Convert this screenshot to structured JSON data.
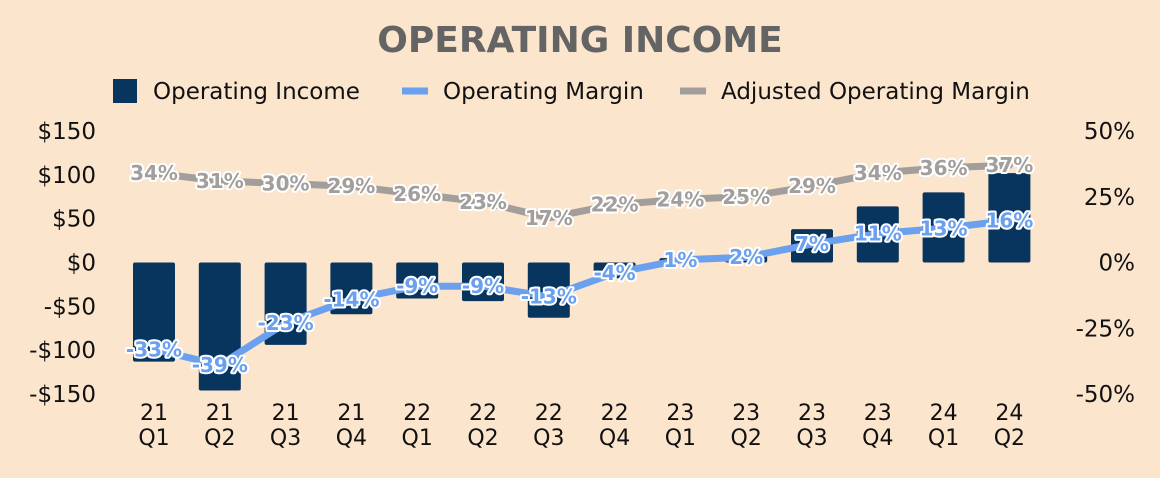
{
  "chart_data": {
    "type": "bar+line",
    "title": "OPERATING INCOME",
    "categories": [
      [
        "21",
        "Q1"
      ],
      [
        "21",
        "Q2"
      ],
      [
        "21",
        "Q3"
      ],
      [
        "21",
        "Q4"
      ],
      [
        "22",
        "Q1"
      ],
      [
        "22",
        "Q2"
      ],
      [
        "22",
        "Q3"
      ],
      [
        "22",
        "Q4"
      ],
      [
        "23",
        "Q1"
      ],
      [
        "23",
        "Q2"
      ],
      [
        "23",
        "Q3"
      ],
      [
        "23",
        "Q4"
      ],
      [
        "24",
        "Q1"
      ],
      [
        "24",
        "Q2"
      ]
    ],
    "series": [
      {
        "name": "Operating Income",
        "type": "bar",
        "axis": "left",
        "color": "#07355e",
        "values": [
          -113,
          -146,
          -94,
          -59,
          -41,
          -44,
          -63,
          -18,
          5,
          8,
          38,
          64,
          80,
          102
        ]
      },
      {
        "name": "Operating Margin",
        "type": "line",
        "axis": "right",
        "color": "#6aa0ee",
        "values": [
          -33,
          -39,
          -23,
          -14,
          -9,
          -9,
          -13,
          -4,
          1,
          2,
          7,
          11,
          13,
          16
        ],
        "labels": [
          "-33%",
          "-39%",
          "-23%",
          "-14%",
          "-9%",
          "-9%",
          "-13%",
          "-4%",
          "1%",
          "2%",
          "7%",
          "11%",
          "13%",
          "16%"
        ]
      },
      {
        "name": "Adjusted Operating Margin",
        "type": "line",
        "axis": "right",
        "color": "#a19e9c",
        "values": [
          34,
          31,
          30,
          29,
          26,
          23,
          17,
          22,
          24,
          25,
          29,
          34,
          36,
          37
        ],
        "labels": [
          "34%",
          "31%",
          "30%",
          "29%",
          "26%",
          "23%",
          "17%",
          "22%",
          "24%",
          "25%",
          "29%",
          "34%",
          "36%",
          "37%"
        ]
      }
    ],
    "left_axis": {
      "range": [
        -150,
        150
      ],
      "ticks": [
        150,
        100,
        50,
        0,
        -50,
        -100,
        -150
      ],
      "tick_labels": [
        "$150",
        "$100",
        "$50",
        "$0",
        "-$50",
        "-$100",
        "-$150"
      ]
    },
    "right_axis": {
      "range": [
        -50,
        50
      ],
      "ticks": [
        50,
        25,
        0,
        -25,
        -50
      ],
      "tick_labels": [
        "50%",
        "25%",
        "0%",
        "-25%",
        "-50%"
      ]
    },
    "legend_position": "top",
    "grid": false
  }
}
